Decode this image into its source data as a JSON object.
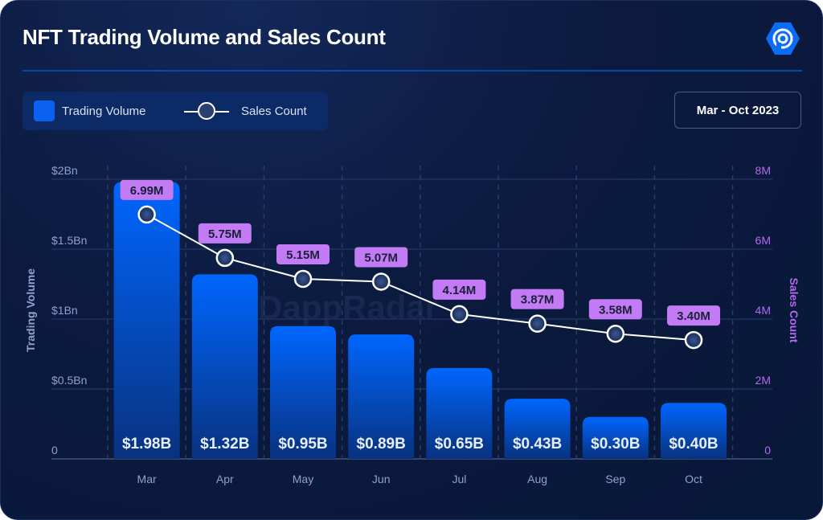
{
  "header": {
    "title": "NFT Trading Volume and Sales Count",
    "logo_icon": "dappradar-logo-icon",
    "watermark": "DappRadar"
  },
  "legend": {
    "items": [
      {
        "label": "Trading Volume",
        "type": "bar",
        "color": "#0a60f0"
      },
      {
        "label": "Sales Count",
        "type": "line-marker",
        "color": "#ffffff"
      }
    ]
  },
  "date_range": {
    "label": "Mar - Oct 2023"
  },
  "colors": {
    "bar_top": "#0066ff",
    "bar_bottom": "#08327f",
    "label_bg": "#c27af5",
    "right_axis": "#b667f0",
    "left_axis": "#8fa2cc"
  },
  "chart_data": {
    "type": "bar",
    "categories": [
      "Mar",
      "Apr",
      "May",
      "Jun",
      "Jul",
      "Aug",
      "Sep",
      "Oct"
    ],
    "xlabel": "",
    "grid": true,
    "legend_placement": "top-left",
    "y_left": {
      "label": "Trading Volume",
      "unit": "USD billions",
      "range": [
        0,
        2
      ],
      "ticks": [
        {
          "v": 0,
          "t": "0"
        },
        {
          "v": 0.5,
          "t": "$0.5Bn"
        },
        {
          "v": 1,
          "t": "$1Bn"
        },
        {
          "v": 1.5,
          "t": "$1.5Bn"
        },
        {
          "v": 2,
          "t": "$2Bn"
        }
      ]
    },
    "y_right": {
      "label": "Sales Count",
      "unit": "millions",
      "range": [
        0,
        8
      ],
      "ticks": [
        {
          "v": 0,
          "t": "0"
        },
        {
          "v": 2,
          "t": "2M"
        },
        {
          "v": 4,
          "t": "4M"
        },
        {
          "v": 6,
          "t": "6M"
        },
        {
          "v": 8,
          "t": "8M"
        }
      ]
    },
    "series": [
      {
        "name": "Trading Volume",
        "type": "bar",
        "axis": "left",
        "values": [
          1.98,
          1.32,
          0.95,
          0.89,
          0.65,
          0.43,
          0.3,
          0.4
        ],
        "labels": [
          "$1.98B",
          "$1.32B",
          "$0.95B",
          "$0.89B",
          "$0.65B",
          "$0.43B",
          "$0.30B",
          "$0.40B"
        ]
      },
      {
        "name": "Sales Count",
        "type": "line",
        "axis": "right",
        "values": [
          6.99,
          5.75,
          5.15,
          5.07,
          4.14,
          3.87,
          3.58,
          3.4
        ],
        "labels": [
          "6.99M",
          "5.75M",
          "5.15M",
          "5.07M",
          "4.14M",
          "3.87M",
          "3.58M",
          "3.40M"
        ]
      }
    ]
  }
}
